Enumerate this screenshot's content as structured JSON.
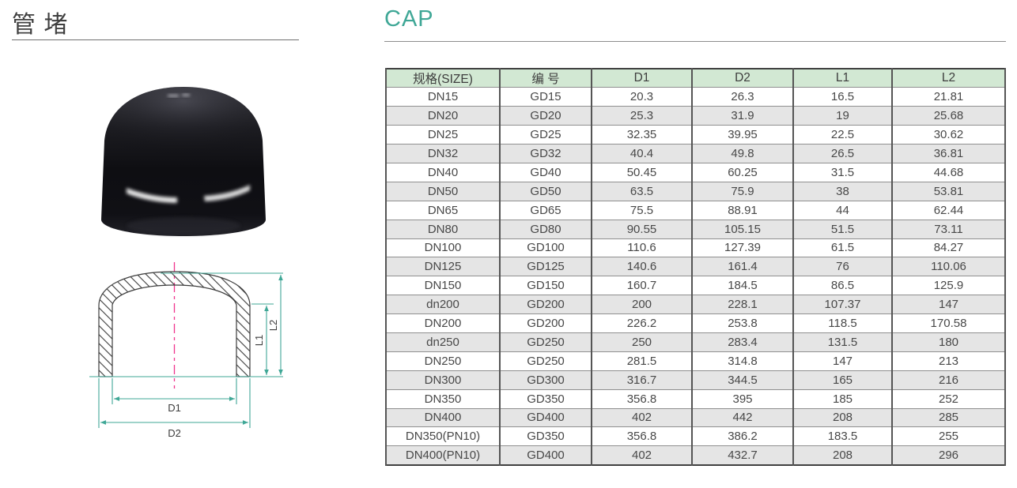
{
  "page": {
    "title_cn": "管 堵",
    "title_en": "CAP"
  },
  "table": {
    "headers": [
      "规格(SIZE)",
      "编 号",
      "D1",
      "D2",
      "L1",
      "L2"
    ],
    "rows": [
      [
        "DN15",
        "GD15",
        "20.3",
        "26.3",
        "16.5",
        "21.81"
      ],
      [
        "DN20",
        "GD20",
        "25.3",
        "31.9",
        "19",
        "25.68"
      ],
      [
        "DN25",
        "GD25",
        "32.35",
        "39.95",
        "22.5",
        "30.62"
      ],
      [
        "DN32",
        "GD32",
        "40.4",
        "49.8",
        "26.5",
        "36.81"
      ],
      [
        "DN40",
        "GD40",
        "50.45",
        "60.25",
        "31.5",
        "44.68"
      ],
      [
        "DN50",
        "GD50",
        "63.5",
        "75.9",
        "38",
        "53.81"
      ],
      [
        "DN65",
        "GD65",
        "75.5",
        "88.91",
        "44",
        "62.44"
      ],
      [
        "DN80",
        "GD80",
        "90.55",
        "105.15",
        "51.5",
        "73.11"
      ],
      [
        "DN100",
        "GD100",
        "110.6",
        "127.39",
        "61.5",
        "84.27"
      ],
      [
        "DN125",
        "GD125",
        "140.6",
        "161.4",
        "76",
        "110.06"
      ],
      [
        "DN150",
        "GD150",
        "160.7",
        "184.5",
        "86.5",
        "125.9"
      ],
      [
        "dn200",
        "GD200",
        "200",
        "228.1",
        "107.37",
        "147"
      ],
      [
        "DN200",
        "GD200",
        "226.2",
        "253.8",
        "118.5",
        "170.58"
      ],
      [
        "dn250",
        "GD250",
        "250",
        "283.4",
        "131.5",
        "180"
      ],
      [
        "DN250",
        "GD250",
        "281.5",
        "314.8",
        "147",
        "213"
      ],
      [
        "DN300",
        "GD300",
        "316.7",
        "344.5",
        "165",
        "216"
      ],
      [
        "DN350",
        "GD350",
        "356.8",
        "395",
        "185",
        "252"
      ],
      [
        "DN400",
        "GD400",
        "402",
        "442",
        "208",
        "285"
      ],
      [
        "DN350(PN10)",
        "GD350",
        "356.8",
        "386.2",
        "183.5",
        "255"
      ],
      [
        "DN400(PN10)",
        "GD400",
        "402",
        "432.7",
        "208",
        "296"
      ]
    ]
  },
  "diagram": {
    "labels": {
      "d1": "D1",
      "d2": "D2",
      "l1": "L1",
      "l2": "L2"
    }
  },
  "colors": {
    "accent_teal": "#3FA796",
    "table_header_bg": "#D2E8D3",
    "table_row_alt_bg": "#E5E5E5",
    "centerline_pink": "#F0348C",
    "diagram_dimension_line": "#3FA796",
    "text_dark": "#3F3F3F"
  }
}
